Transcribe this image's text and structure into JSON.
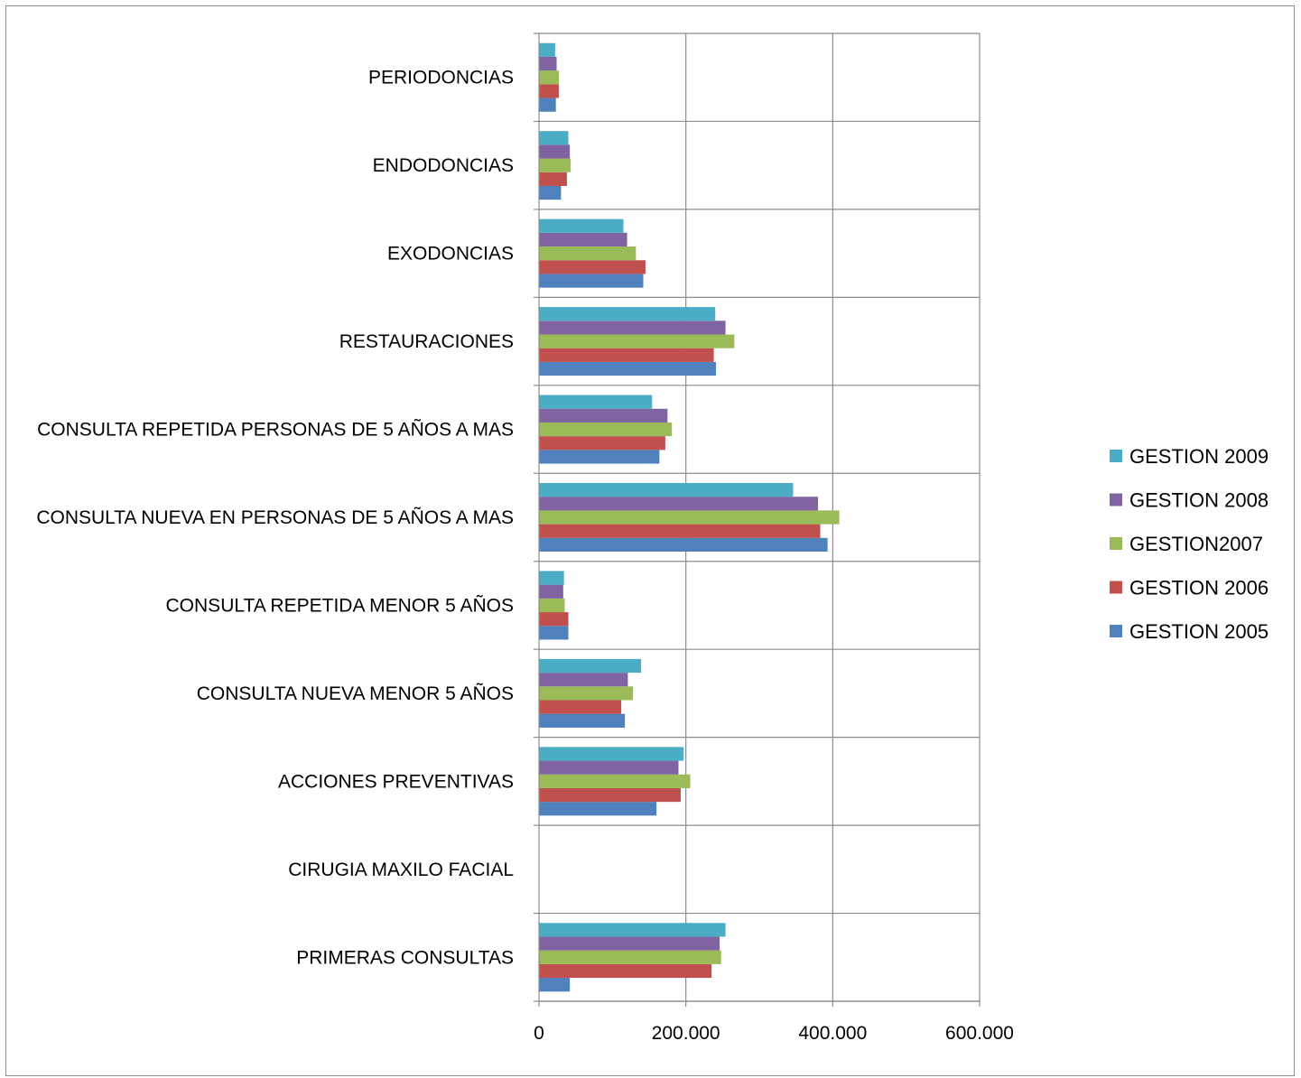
{
  "chart_data": {
    "type": "bar",
    "orientation": "horizontal",
    "categories": [
      "PRIMERAS CONSULTAS",
      "CIRUGIA MAXILO FACIAL",
      "ACCIONES PREVENTIVAS",
      "CONSULTA NUEVA MENOR 5 AÑOS",
      "CONSULTA REPETIDA MENOR 5 AÑOS",
      "CONSULTA NUEVA EN PERSONAS DE 5 AÑOS A MAS",
      "CONSULTA REPETIDA PERSONAS DE 5 AÑOS A MAS",
      "RESTAURACIONES",
      "EXODONCIAS",
      "ENDODONCIAS",
      "PERIODONCIAS"
    ],
    "series": [
      {
        "name": "GESTION 2005",
        "color": "#4F81BD",
        "values": [
          42000,
          0,
          160000,
          117000,
          40000,
          393000,
          164000,
          241000,
          142000,
          30000,
          23000
        ]
      },
      {
        "name": "GESTION 2006",
        "color": "#C0504D",
        "values": [
          235000,
          0,
          193000,
          112000,
          40000,
          383000,
          172000,
          238000,
          145000,
          38000,
          27000
        ]
      },
      {
        "name": "GESTION2007",
        "color": "#9BBB59",
        "values": [
          248000,
          0,
          206000,
          128000,
          35000,
          409000,
          181000,
          266000,
          132000,
          43000,
          27000
        ]
      },
      {
        "name": "GESTION 2008",
        "color": "#8064A2",
        "values": [
          246000,
          0,
          190000,
          121000,
          33000,
          380000,
          175000,
          254000,
          120000,
          42000,
          24000
        ]
      },
      {
        "name": "GESTION 2009",
        "color": "#4BACC6",
        "values": [
          254000,
          0,
          197000,
          139000,
          34000,
          346000,
          154000,
          240000,
          115000,
          40000,
          22000
        ]
      }
    ],
    "xlim": [
      0,
      600000
    ],
    "x_ticks": [
      0,
      200000,
      400000,
      600000
    ],
    "x_tick_labels": [
      "0",
      "200.000",
      "400.000",
      "600.000"
    ],
    "title": "",
    "xlabel": "",
    "ylabel": "",
    "grid": true,
    "legend_position": "right"
  }
}
